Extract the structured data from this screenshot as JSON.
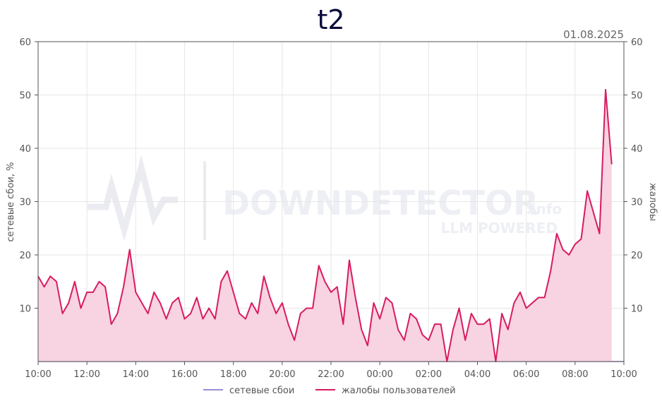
{
  "chart_data": {
    "type": "area",
    "title": "t2",
    "date": "01.08.2025",
    "ylabel_left": "сетевые сбои, %",
    "ylabel_right": "жалобы",
    "xticks": [
      "10:00",
      "12:00",
      "14:00",
      "16:00",
      "18:00",
      "20:00",
      "22:00",
      "00:00",
      "02:00",
      "04:00",
      "06:00",
      "08:00",
      "10:00"
    ],
    "xlim_hours": [
      0,
      24
    ],
    "ylim": [
      0,
      60
    ],
    "yticks": [
      10,
      20,
      30,
      40,
      50,
      60
    ],
    "grid": true,
    "legend_position": "bottom-center",
    "watermark": {
      "brand": "DOWNDETECTOR",
      "suffix": ".info",
      "tagline": "LLM POWERED"
    },
    "series": [
      {
        "name": "сетевые сбои",
        "color": "#9b8cd9",
        "x_start_hour": 0,
        "x_step_minutes": 15,
        "values": [
          0,
          0,
          0,
          0,
          0,
          0,
          0,
          0,
          0,
          0,
          0,
          0,
          0,
          0,
          0,
          0,
          0,
          0,
          0,
          0,
          0,
          0,
          0,
          0,
          0,
          0,
          0,
          0,
          0,
          0,
          0,
          0,
          0,
          0,
          0,
          0,
          0,
          0,
          0,
          0,
          0,
          0,
          0,
          0,
          0,
          0,
          0,
          0,
          0,
          0,
          0,
          0,
          0,
          0,
          0,
          0,
          0,
          0,
          0,
          0,
          0,
          0,
          0,
          0,
          0,
          0,
          0,
          0,
          0,
          0,
          0,
          0,
          0,
          0,
          0,
          0,
          0,
          0,
          0,
          0,
          0,
          0,
          0,
          0,
          0,
          0,
          0,
          0,
          0,
          0,
          0,
          0,
          0,
          0,
          0,
          0,
          0
        ]
      },
      {
        "name": "жалобы пользователей",
        "color": "#d81b60",
        "fill": "#f8d3e2",
        "x_start_hour": 0,
        "x_step_minutes": 15,
        "values": [
          16,
          14,
          16,
          15,
          9,
          11,
          15,
          10,
          13,
          13,
          15,
          14,
          7,
          9,
          14,
          21,
          13,
          11,
          9,
          13,
          11,
          8,
          11,
          12,
          8,
          9,
          12,
          8,
          10,
          8,
          15,
          17,
          13,
          9,
          8,
          11,
          9,
          16,
          12,
          9,
          11,
          7,
          4,
          9,
          10,
          10,
          18,
          15,
          13,
          14,
          7,
          19,
          12,
          6,
          3,
          11,
          8,
          12,
          11,
          6,
          4,
          9,
          8,
          5,
          4,
          7,
          7,
          0,
          6,
          10,
          4,
          9,
          7,
          7,
          8,
          0,
          9,
          6,
          11,
          13,
          10,
          11,
          12,
          12,
          17,
          24,
          21,
          20,
          22,
          23,
          32,
          28,
          24,
          51,
          37
        ]
      }
    ]
  }
}
